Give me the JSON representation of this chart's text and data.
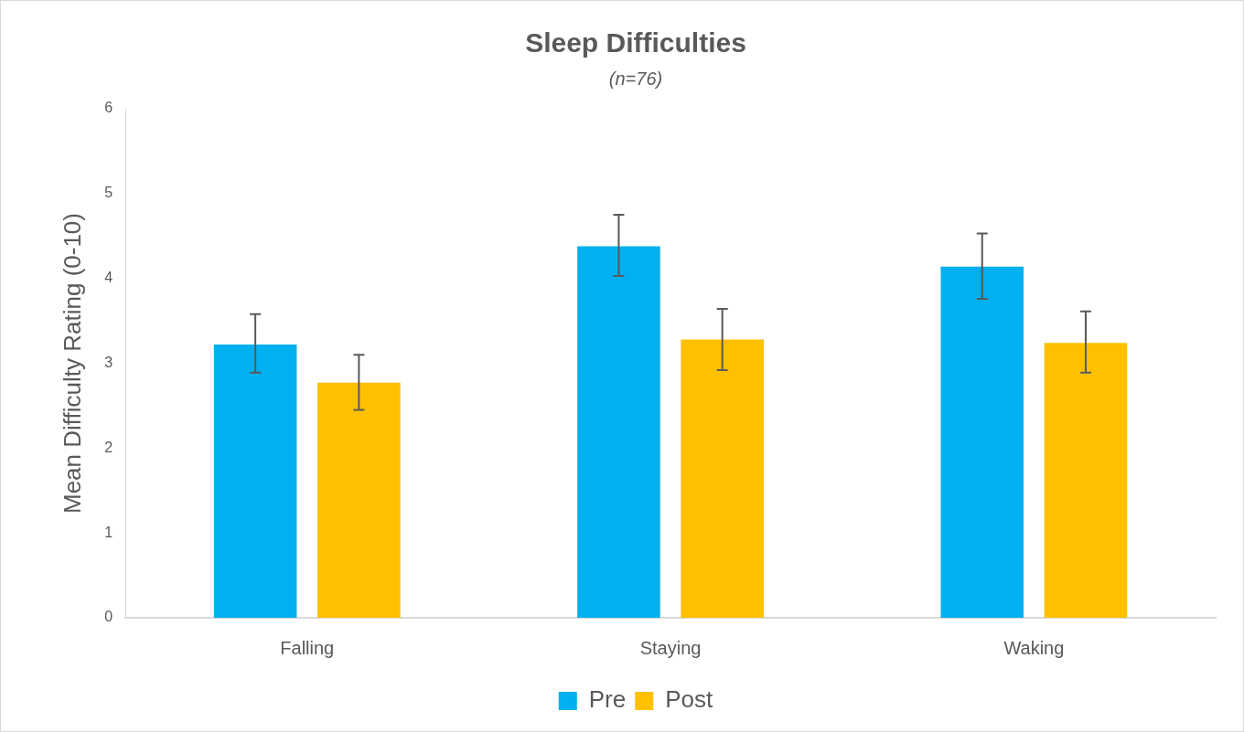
{
  "chart_data": {
    "type": "bar",
    "title": "Sleep Difficulties",
    "subtitle": "(n=76)",
    "ylabel": "Mean Difficulty Rating (0-10)",
    "categories": [
      "Falling",
      "Staying",
      "Waking"
    ],
    "series": [
      {
        "name": "Pre",
        "color": "#00b0f0",
        "values": [
          3.22,
          4.38,
          4.14
        ],
        "errors": [
          [
            2.89,
            3.58
          ],
          [
            4.03,
            4.75
          ],
          [
            3.76,
            4.53
          ]
        ]
      },
      {
        "name": "Post",
        "color": "#ffc000",
        "values": [
          2.77,
          3.28,
          3.24
        ],
        "errors": [
          [
            2.45,
            3.1
          ],
          [
            2.92,
            3.64
          ],
          [
            2.89,
            3.61
          ]
        ]
      }
    ],
    "ylim": [
      0,
      6
    ],
    "yticks": [
      0,
      1,
      2,
      3,
      4,
      5,
      6
    ],
    "grid": false,
    "legend": "bottom"
  }
}
